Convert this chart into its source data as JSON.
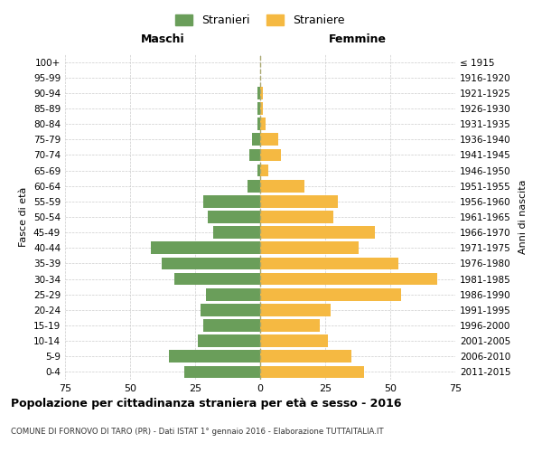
{
  "age_groups": [
    "0-4",
    "5-9",
    "10-14",
    "15-19",
    "20-24",
    "25-29",
    "30-34",
    "35-39",
    "40-44",
    "45-49",
    "50-54",
    "55-59",
    "60-64",
    "65-69",
    "70-74",
    "75-79",
    "80-84",
    "85-89",
    "90-94",
    "95-99",
    "100+"
  ],
  "birth_years": [
    "2011-2015",
    "2006-2010",
    "2001-2005",
    "1996-2000",
    "1991-1995",
    "1986-1990",
    "1981-1985",
    "1976-1980",
    "1971-1975",
    "1966-1970",
    "1961-1965",
    "1956-1960",
    "1951-1955",
    "1946-1950",
    "1941-1945",
    "1936-1940",
    "1931-1935",
    "1926-1930",
    "1921-1925",
    "1916-1920",
    "≤ 1915"
  ],
  "males": [
    29,
    35,
    24,
    22,
    23,
    21,
    33,
    38,
    42,
    18,
    20,
    22,
    5,
    1,
    4,
    3,
    1,
    1,
    1,
    0,
    0
  ],
  "females": [
    40,
    35,
    26,
    23,
    27,
    54,
    68,
    53,
    38,
    44,
    28,
    30,
    17,
    3,
    8,
    7,
    2,
    1,
    1,
    0,
    0
  ],
  "male_color": "#6a9e5a",
  "female_color": "#f5b942",
  "background_color": "#ffffff",
  "grid_color": "#cccccc",
  "xlim": 75,
  "title": "Popolazione per cittadinanza straniera per età e sesso - 2016",
  "subtitle": "COMUNE DI FORNOVO DI TARO (PR) - Dati ISTAT 1° gennaio 2016 - Elaborazione TUTTAITALIA.IT",
  "xlabel_left": "Maschi",
  "xlabel_right": "Femmine",
  "ylabel_left": "Fasce di età",
  "ylabel_right": "Anni di nascita",
  "legend_male": "Stranieri",
  "legend_female": "Straniere",
  "bar_height": 0.8
}
